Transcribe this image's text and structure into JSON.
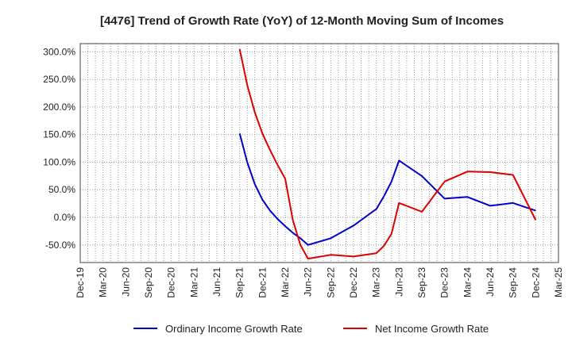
{
  "chart_data": {
    "type": "line",
    "title": "[4476]  Trend of Growth Rate (YoY) of 12-Month Moving Sum of Incomes",
    "xlabel": "",
    "ylabel": "",
    "ylim": [
      -82,
      315
    ],
    "y_ticks": [
      "300.0%",
      "250.0%",
      "200.0%",
      "150.0%",
      "100.0%",
      "50.0%",
      "0.0%",
      "-50.0%"
    ],
    "y_tick_values": [
      300,
      250,
      200,
      150,
      100,
      50,
      0,
      -50
    ],
    "x_ticks": [
      "Dec-19",
      "Mar-20",
      "Jun-20",
      "Sep-20",
      "Dec-20",
      "Mar-21",
      "Jun-21",
      "Sep-21",
      "Dec-21",
      "Mar-22",
      "Jun-22",
      "Sep-22",
      "Dec-22",
      "Mar-23",
      "Jun-23",
      "Sep-23",
      "Dec-23",
      "Mar-24",
      "Jun-24",
      "Sep-24",
      "Dec-24",
      "Mar-25"
    ],
    "grid": true,
    "legend_position": "bottom",
    "series": [
      {
        "name": "Ordinary Income Growth Rate",
        "color": "#0000cc",
        "points": [
          {
            "x": "2021-09",
            "y": 152
          },
          {
            "x": "2021-10",
            "y": 100
          },
          {
            "x": "2021-11",
            "y": 60
          },
          {
            "x": "2021-12",
            "y": 32
          },
          {
            "x": "2022-01",
            "y": 12
          },
          {
            "x": "2022-02",
            "y": -3
          },
          {
            "x": "2022-03",
            "y": -16
          },
          {
            "x": "2022-04",
            "y": -28
          },
          {
            "x": "2022-05",
            "y": -38
          },
          {
            "x": "2022-06",
            "y": -50
          },
          {
            "x": "2022-09",
            "y": -38
          },
          {
            "x": "2022-12",
            "y": -15
          },
          {
            "x": "2023-02",
            "y": 5
          },
          {
            "x": "2023-03",
            "y": 15
          },
          {
            "x": "2023-04",
            "y": 38
          },
          {
            "x": "2023-05",
            "y": 65
          },
          {
            "x": "2023-06",
            "y": 103
          },
          {
            "x": "2023-09",
            "y": 75
          },
          {
            "x": "2023-12",
            "y": 34
          },
          {
            "x": "2024-03",
            "y": 37
          },
          {
            "x": "2024-06",
            "y": 21
          },
          {
            "x": "2024-09",
            "y": 26
          },
          {
            "x": "2024-12",
            "y": 12
          }
        ]
      },
      {
        "name": "Net Income Growth Rate",
        "color": "#dd0000",
        "points": [
          {
            "x": "2021-09",
            "y": 305
          },
          {
            "x": "2021-10",
            "y": 240
          },
          {
            "x": "2021-11",
            "y": 190
          },
          {
            "x": "2021-12",
            "y": 152
          },
          {
            "x": "2022-01",
            "y": 122
          },
          {
            "x": "2022-02",
            "y": 95
          },
          {
            "x": "2022-03",
            "y": 70
          },
          {
            "x": "2022-04",
            "y": -5
          },
          {
            "x": "2022-05",
            "y": -50
          },
          {
            "x": "2022-06",
            "y": -75
          },
          {
            "x": "2022-09",
            "y": -68
          },
          {
            "x": "2022-12",
            "y": -71
          },
          {
            "x": "2023-03",
            "y": -65
          },
          {
            "x": "2023-04",
            "y": -52
          },
          {
            "x": "2023-05",
            "y": -30
          },
          {
            "x": "2023-06",
            "y": 26
          },
          {
            "x": "2023-09",
            "y": 10
          },
          {
            "x": "2023-12",
            "y": 65
          },
          {
            "x": "2024-03",
            "y": 83
          },
          {
            "x": "2024-06",
            "y": 82
          },
          {
            "x": "2024-09",
            "y": 77
          },
          {
            "x": "2024-12",
            "y": -5
          }
        ]
      }
    ]
  }
}
